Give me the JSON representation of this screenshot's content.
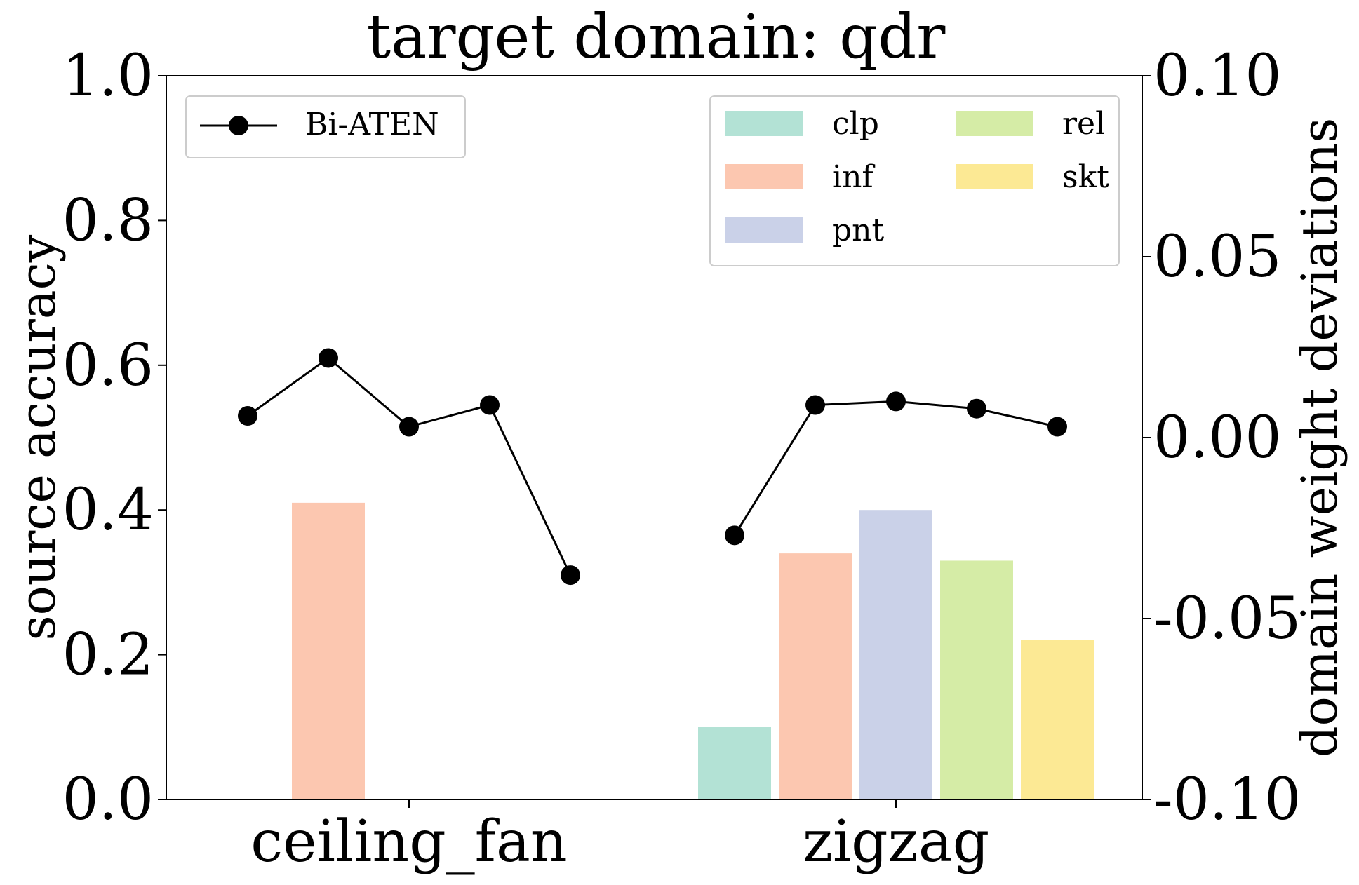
{
  "chart_data": {
    "type": "bar",
    "title": "target domain: qdr",
    "ylabel": "source accuracy",
    "y2label": "domain weight deviations",
    "ylim": [
      0,
      1.0
    ],
    "y2lim": [
      -0.1,
      0.1
    ],
    "yticks": [
      "0.0",
      "0.2",
      "0.4",
      "0.6",
      "0.8",
      "1.0"
    ],
    "y2ticks": [
      "-0.10",
      "-0.05",
      "0.00",
      "0.05",
      "0.10"
    ],
    "categories": [
      "ceiling_fan",
      "zigzag"
    ],
    "series": [
      {
        "name": "clp",
        "color": "#b3e2d5",
        "values": [
          0.0,
          0.1
        ]
      },
      {
        "name": "inf",
        "color": "#fcc7b0",
        "values": [
          0.41,
          0.34
        ]
      },
      {
        "name": "pnt",
        "color": "#cad1e8",
        "values": [
          0.0,
          0.4
        ]
      },
      {
        "name": "rel",
        "color": "#d5eca6",
        "values": [
          0.0,
          0.33
        ]
      },
      {
        "name": "skt",
        "color": "#fce994",
        "values": [
          0.0,
          0.22
        ]
      }
    ],
    "line_series": {
      "name": "Bi-ATEN",
      "color": "#000000",
      "values": [
        [
          0.006,
          0.022,
          0.003,
          0.009,
          -0.038
        ],
        [
          -0.027,
          0.009,
          0.01,
          0.008,
          0.003
        ]
      ]
    },
    "grid": false,
    "legend_placement": "top-right",
    "line_legend_placement": "top-left"
  }
}
